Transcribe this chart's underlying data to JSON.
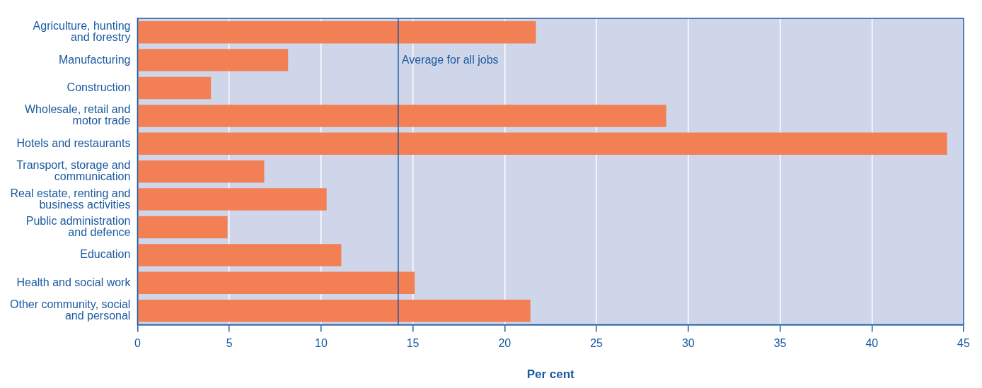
{
  "chart_data": {
    "type": "bar",
    "orientation": "horizontal",
    "xlabel": "Per cent",
    "categories": [
      "Agriculture, hunting\nand forestry",
      "Manufacturing",
      "Construction",
      "Wholesale, retail and\nmotor trade",
      "Hotels and restaurants",
      "Transport, storage and\ncommunication",
      "Real estate, renting and\nbusiness activities",
      "Public administration\nand defence",
      "Education",
      "Health and social work",
      "Other community, social\nand personal"
    ],
    "values": [
      21.7,
      8.2,
      4.0,
      28.8,
      44.1,
      6.9,
      10.3,
      4.9,
      11.1,
      15.1,
      21.4
    ],
    "color": "#f37f55",
    "xlim": [
      0,
      45
    ],
    "xticks": [
      0,
      5,
      10,
      15,
      20,
      25,
      30,
      35,
      40,
      45
    ],
    "grid": "x",
    "legend": false,
    "ref_lines": [
      {
        "axis": "x",
        "value": 14.2,
        "label": "Average for all jobs",
        "color": "#1a5aa0"
      }
    ]
  }
}
